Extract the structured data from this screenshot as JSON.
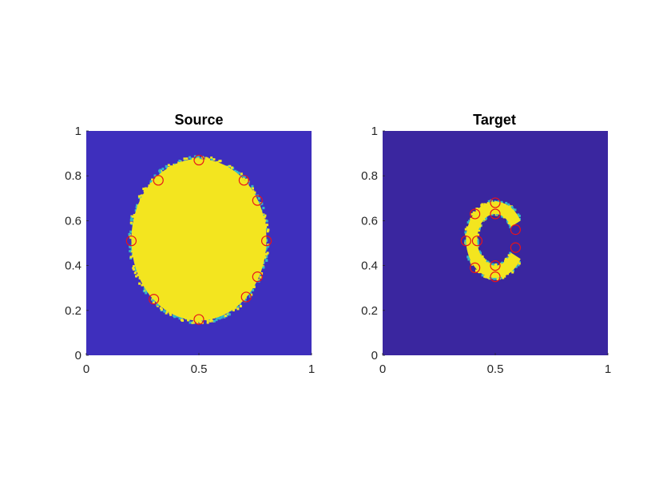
{
  "chart_data": [
    {
      "type": "heatmap",
      "title": "Source",
      "xlabel": "",
      "ylabel": "",
      "xlim": [
        0,
        1
      ],
      "ylim": [
        0,
        1
      ],
      "x_ticks": [
        "0",
        "0.5",
        "1"
      ],
      "y_ticks": [
        "0",
        "0.2",
        "0.4",
        "0.6",
        "0.8",
        "1"
      ],
      "background_color": "#3e2fbd",
      "region_color": "#f3e51f",
      "edge_color": "#33b8c8",
      "marker_color": "#e8131a",
      "region": {
        "shape": "ellipse",
        "center": [
          0.5,
          0.515
        ],
        "radius_x": 0.3,
        "radius_y": 0.36
      },
      "markers": [
        {
          "x": 0.5,
          "y": 0.87
        },
        {
          "x": 0.32,
          "y": 0.78
        },
        {
          "x": 0.7,
          "y": 0.78
        },
        {
          "x": 0.76,
          "y": 0.69
        },
        {
          "x": 0.2,
          "y": 0.51
        },
        {
          "x": 0.8,
          "y": 0.51
        },
        {
          "x": 0.76,
          "y": 0.35
        },
        {
          "x": 0.71,
          "y": 0.26
        },
        {
          "x": 0.3,
          "y": 0.25
        },
        {
          "x": 0.5,
          "y": 0.16
        }
      ]
    },
    {
      "type": "heatmap",
      "title": "Target",
      "xlabel": "",
      "ylabel": "",
      "xlim": [
        0,
        1
      ],
      "ylim": [
        0,
        1
      ],
      "x_ticks": [
        "0",
        "0.5",
        "1"
      ],
      "y_ticks": [
        "0",
        "0.2",
        "0.4",
        "0.6",
        "0.8",
        "1"
      ],
      "background_color": "#3a269f",
      "region_color": "#f3e51f",
      "edge_color": "#33b8c8",
      "marker_color": "#e8131a",
      "region": {
        "shape": "ring-arc",
        "center": [
          0.5,
          0.515
        ],
        "outer_radius_x": 0.13,
        "outer_radius_y": 0.17,
        "inner_radius_x": 0.08,
        "inner_radius_y": 0.115,
        "gap_side": "right",
        "gap_half_angle_deg": 30
      },
      "markers": [
        {
          "x": 0.5,
          "y": 0.68
        },
        {
          "x": 0.41,
          "y": 0.63
        },
        {
          "x": 0.5,
          "y": 0.63
        },
        {
          "x": 0.59,
          "y": 0.56
        },
        {
          "x": 0.37,
          "y": 0.51
        },
        {
          "x": 0.42,
          "y": 0.51
        },
        {
          "x": 0.59,
          "y": 0.48
        },
        {
          "x": 0.41,
          "y": 0.39
        },
        {
          "x": 0.5,
          "y": 0.4
        },
        {
          "x": 0.5,
          "y": 0.35
        }
      ]
    }
  ]
}
